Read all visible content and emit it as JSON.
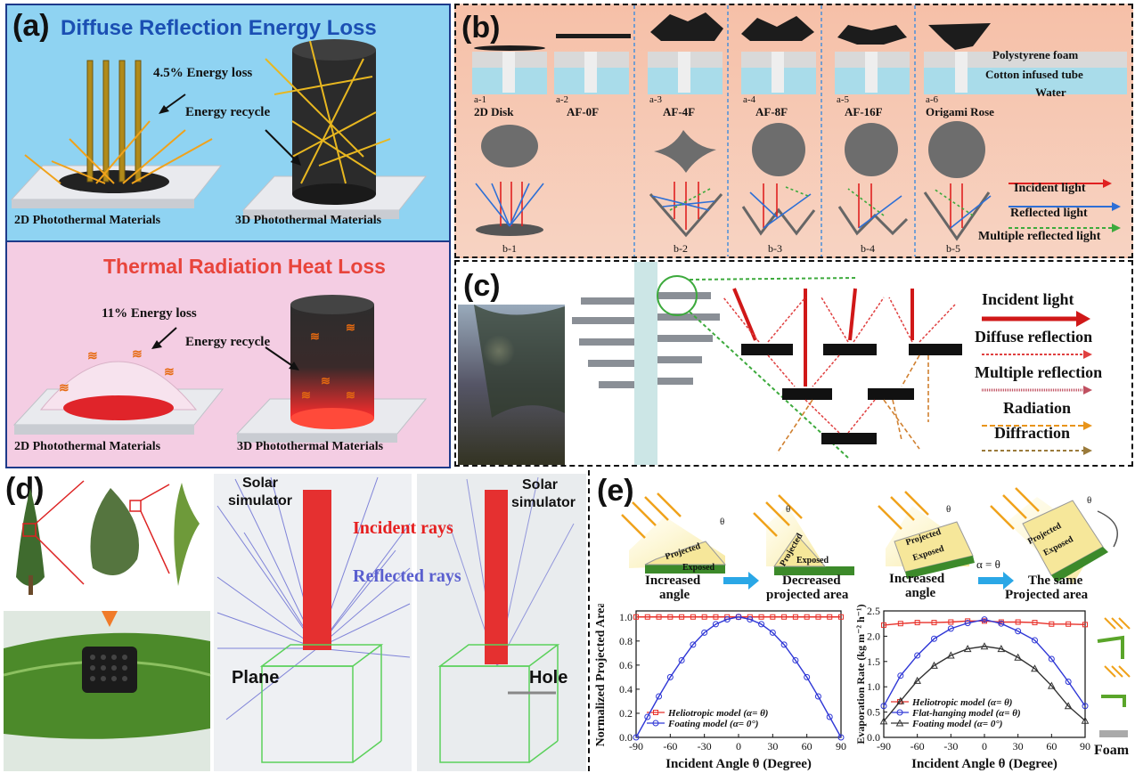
{
  "panel_a": {
    "label": "(a)",
    "top_title": "Diffuse Reflection Energy Loss",
    "top_loss": "4.5% Energy loss",
    "top_recycle": "Energy recycle",
    "left_caption": "2D Photothermal Materials",
    "right_caption": "3D Photothermal Materials",
    "bottom_title": "Thermal Radiation Heat Loss",
    "bottom_loss": "11% Energy loss",
    "bottom_recycle": "Energy recycle",
    "colors": {
      "top_bg": "#8fd3f2",
      "bottom_bg": "#f4cde3",
      "top_title": "#1b4fb3",
      "bottom_title": "#e8453c"
    }
  },
  "panel_b": {
    "label": "(b)",
    "layers": [
      "Polystyrene foam",
      "Cotton infused tube",
      "Water"
    ],
    "samples": [
      {
        "code": "a-1",
        "name": "2D Disk"
      },
      {
        "code": "a-2",
        "name": "AF-0F"
      },
      {
        "code": "a-3",
        "name": "AF-4F"
      },
      {
        "code": "a-4",
        "name": "AF-8F"
      },
      {
        "code": "a-5",
        "name": "AF-16F"
      },
      {
        "code": "a-6",
        "name": "Origami Rose"
      }
    ],
    "ray_codes": [
      "b-1",
      "b-2",
      "b-3",
      "b-4",
      "b-5"
    ],
    "legend": [
      "Incident light",
      "Reflected light",
      "Multiple  reflected light"
    ]
  },
  "panel_c": {
    "label": "(c)",
    "legend": [
      "Incident light",
      "Diffuse reflection",
      "Multiple reflection",
      "Radiation",
      "Diffraction"
    ]
  },
  "panel_d": {
    "label": "(d)",
    "solar_left": [
      "Solar",
      "simulator"
    ],
    "solar_right": [
      "Solar",
      "simulator"
    ],
    "incident": "Incident rays",
    "reflected": "Reflected rays",
    "plane": "Plane",
    "hole": "Hole"
  },
  "panel_e": {
    "label": "(e)",
    "theta": "θ",
    "alpha_eq": "α = θ",
    "projected": "Projected",
    "exposed": "Exposed",
    "captions": [
      [
        "Increased",
        "angle"
      ],
      [
        "Decreased",
        "projected area"
      ],
      [
        "Increased",
        "angle"
      ],
      [
        "The same",
        "Projected area"
      ]
    ],
    "foam": "Foam"
  },
  "chart_data": [
    {
      "type": "line",
      "ylabel": "Normalized Projected Area",
      "xlabel": "Incident Angle θ (Degree)",
      "xlim": [
        -90,
        90
      ],
      "ylim": [
        0,
        1.05
      ],
      "xticks": [
        -90,
        -60,
        -30,
        0,
        30,
        60,
        90
      ],
      "yticks": [
        0.0,
        0.2,
        0.4,
        0.6,
        0.8,
        1.0
      ],
      "x": [
        -90,
        -80,
        -70,
        -60,
        -50,
        -40,
        -30,
        -20,
        -10,
        0,
        10,
        20,
        30,
        40,
        50,
        60,
        70,
        80,
        90
      ],
      "series": [
        {
          "name": "Heliotropic model (α= θ)",
          "color": "#e8312a",
          "marker": "square",
          "values": [
            1,
            1,
            1,
            1,
            1,
            1,
            1,
            1,
            1,
            1,
            1,
            1,
            1,
            1,
            1,
            1,
            1,
            1,
            1
          ]
        },
        {
          "name": "Foating model (α= 0°)",
          "color": "#2f37d6",
          "marker": "circle",
          "values": [
            0.0,
            0.17,
            0.34,
            0.5,
            0.64,
            0.77,
            0.87,
            0.94,
            0.98,
            1.0,
            0.98,
            0.94,
            0.87,
            0.77,
            0.64,
            0.5,
            0.34,
            0.17,
            0.0
          ]
        }
      ],
      "legend": "bottom-center"
    },
    {
      "type": "line",
      "ylabel": "Evaporation Rate (kg m⁻² h⁻¹)",
      "xlabel": "Incident Angle θ (Degree)",
      "xlim": [
        -90,
        90
      ],
      "ylim": [
        0,
        2.5
      ],
      "xticks": [
        -90,
        -60,
        -30,
        0,
        30,
        60,
        90
      ],
      "yticks": [
        0.0,
        0.5,
        1.0,
        1.5,
        2.0,
        2.5
      ],
      "x": [
        -90,
        -75,
        -60,
        -45,
        -30,
        -15,
        0,
        15,
        30,
        45,
        60,
        75,
        90
      ],
      "series": [
        {
          "name": "Heliotropic model (α= θ)",
          "color": "#e8312a",
          "marker": "square",
          "values": [
            2.22,
            2.25,
            2.27,
            2.27,
            2.28,
            2.3,
            2.3,
            2.28,
            2.28,
            2.27,
            2.24,
            2.24,
            2.23
          ]
        },
        {
          "name": "Flat-hanging model (α= θ)",
          "color": "#2f37d6",
          "marker": "circle",
          "values": [
            0.62,
            1.22,
            1.62,
            1.95,
            2.15,
            2.26,
            2.33,
            2.25,
            2.1,
            1.92,
            1.55,
            1.1,
            0.62
          ]
        },
        {
          "name": "Foating model (α= 0°)",
          "color": "#333333",
          "marker": "triangle",
          "values": [
            0.32,
            0.72,
            1.12,
            1.42,
            1.62,
            1.75,
            1.8,
            1.75,
            1.58,
            1.36,
            1.02,
            0.62,
            0.33
          ]
        }
      ],
      "legend": "bottom-center"
    }
  ]
}
